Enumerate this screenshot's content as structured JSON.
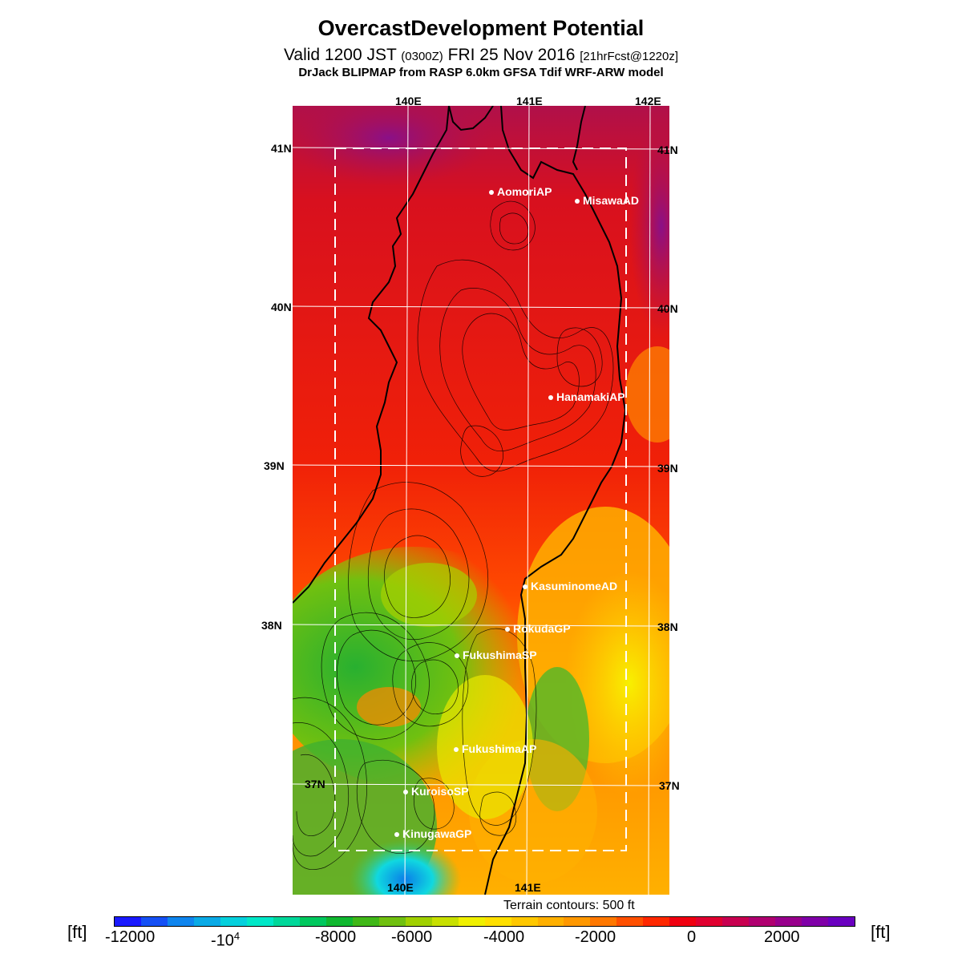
{
  "header": {
    "title": "OvercastDevelopment Potential",
    "valid_prefix": "Valid 1200 JST",
    "valid_z": "(0300Z)",
    "valid_date": "FRI 25 Nov 2016",
    "forecast": "[21hrFcst@1220z]",
    "model": "DrJack BLIPMAP from RASP 6.0km GFSA Tdif WRF-ARW model"
  },
  "map": {
    "lon_top": [
      "140E",
      "141E",
      "142E"
    ],
    "lon_bottom": [
      "140E",
      "141E"
    ],
    "lat_left": [
      "41N",
      "40N",
      "39N",
      "38N",
      "37N"
    ],
    "lat_right": [
      "41N",
      "40N",
      "39N",
      "38N",
      "37N"
    ],
    "stations": [
      "AomoriAP",
      "MisawaAD",
      "HanamakiAP",
      "KasuminomeAD",
      "RokudaGP",
      "FukushimaSP",
      "FukushimaAP",
      "KuroisoSP",
      "KinugawaGP"
    ]
  },
  "legend": {
    "terrain": "Terrain contours: 500 ft",
    "unit": "[ft]",
    "labels": [
      "-12000",
      "-10",
      "-8000",
      "-6000",
      "-4000",
      "-2000",
      "0",
      "2000"
    ],
    "label_power": "4",
    "colors": [
      "#1a1aff",
      "#1550f5",
      "#0f85ee",
      "#0aaae6",
      "#05d0dd",
      "#00e8c8",
      "#00d89a",
      "#00c85e",
      "#10b830",
      "#40b818",
      "#70c010",
      "#a0d000",
      "#c8e000",
      "#f0f000",
      "#ffe000",
      "#ffc800",
      "#ffb000",
      "#ff9800",
      "#ff7800",
      "#ff5000",
      "#ff2800",
      "#f00010",
      "#e00030",
      "#c80050",
      "#b00070",
      "#98008c",
      "#8000a8",
      "#6a00c0"
    ]
  },
  "colors": {
    "ocean_north": "#c8103a",
    "land_red": "#f5200a",
    "land_orange": "#ff7a00",
    "green": "#40b030",
    "yellow": "#f0f000",
    "cyan": "#10d0e0"
  }
}
